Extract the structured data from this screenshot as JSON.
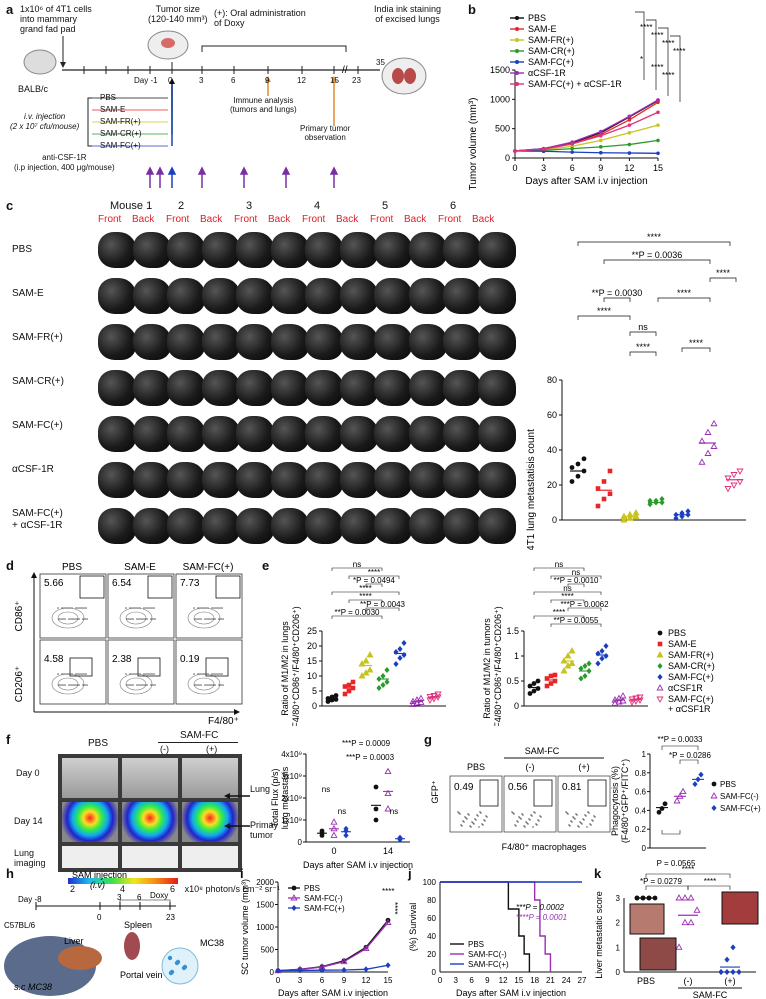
{
  "panels": {
    "a": {
      "letter": "a",
      "cells_note": "1x10⁶ of 4T1 cells\ninto mammary\ngrand fad pad",
      "tumor_size": "Tumor size\n(120-140 mm³)",
      "doxy_note": "(+): Oral administration\nof Doxy",
      "ink_note": "India ink staining\nof excised lungs",
      "mouse_strain": "BALB/c",
      "injection_label": "i.v. injection\n(2 x 10⁷ cfu/mouse)",
      "groups": [
        "PBS",
        "SAM-E",
        "SAM-FR(+)",
        "SAM-CR(+)",
        "SAM-FC(+)"
      ],
      "anti_label": "anti-CSF-1R\n(i.p injection, 400 μg/mouse)",
      "timeline_days": [
        "Day -1",
        "0",
        "3",
        "6",
        "9",
        "12",
        "15",
        "23",
        "35"
      ],
      "immune": "Immune analysis\n(tumors and lungs)",
      "primary": "Primary tumor\nobservation"
    },
    "b": {
      "letter": "b",
      "ylabel": "Tumor volume (mm³)",
      "xlabel": "Days after SAM i.v injection",
      "legend": [
        "PBS",
        "SAM-E",
        "SAM-FR(+)",
        "SAM-CR(+)",
        "SAM-FC(+)",
        "αCSF-1R",
        "SAM-FC(+) + αCSF-1R"
      ],
      "sig": [
        "****",
        "****",
        "****",
        "****",
        "*",
        "****",
        "****"
      ]
    },
    "c": {
      "letter": "c",
      "mouse_headers": [
        "Mouse 1",
        "2",
        "3",
        "4",
        "5",
        "6"
      ],
      "front": "Front",
      "back": "Back",
      "row_labels": [
        "PBS",
        "SAM-E",
        "SAM-FR(+)",
        "SAM-CR(+)",
        "SAM-FC(+)",
        "αCSF-1R",
        "SAM-FC(+)\n+ αCSF-1R"
      ],
      "ylabel": "4T1 lung metastatisis count",
      "stats": [
        "****",
        "**P = 0.0036",
        "****",
        "****",
        "**P = 0.0030",
        "****",
        "ns",
        "****",
        "****"
      ]
    },
    "d": {
      "letter": "d",
      "cols": [
        "PBS",
        "SAM-E",
        "SAM-FC(+)"
      ],
      "top_values": [
        "5.66",
        "6.54",
        "7.73"
      ],
      "bottom_values": [
        "4.58",
        "2.38",
        "0.19"
      ],
      "ylabel_top": "CD86⁺",
      "ylabel_bottom": "CD206⁺",
      "xlabel": "F4/80⁺"
    },
    "e": {
      "letter": "e",
      "ylabel_left": "Ratio of M1/M2  in lungs\n(F4/80⁺CD86⁺/F4/80⁺CD206⁺)",
      "ylabel_right": "Ratio of M1/M2  in tumors\n(F4/80⁺CD86⁺/F4/80⁺CD206⁺)",
      "left_stats": [
        "ns",
        "****",
        "*P = 0.0494",
        "****",
        "****",
        "**P = 0.0043",
        "**P = 0.0030"
      ],
      "right_stats": [
        "ns",
        "ns",
        "**P = 0.0010",
        "ns",
        "****",
        "***P = 0.0062",
        "****",
        "**P = 0.0055"
      ],
      "legend": [
        "PBS",
        "SAM-E",
        "SAM-FR(+)",
        "SAM-CR(+)",
        "SAM-FC(+)",
        "αCSF1R",
        "SAM-FC(+)\n+ αCSF1R"
      ]
    },
    "f": {
      "letter": "f",
      "col_pbs": "PBS",
      "col_samfc": "SAM-FC",
      "minus": "(-)",
      "plus": "(+)",
      "rows": [
        "Day 0",
        "Day 14",
        "Lung\nimaging"
      ],
      "arrow_lung": "Lung",
      "arrow_tumor": "Primay\ntumor",
      "scale_ticks": [
        "2",
        "4",
        "6"
      ],
      "scale_unit": "x10⁸ photon/s cm⁻² sr⁻¹",
      "ylabel": "Total Flux (p/s)\nlung metastasis",
      "xlabel": "Days after SAM i.v injection",
      "stats": [
        "***P = 0.0009",
        "***P = 0.0003",
        "ns",
        "ns",
        "ns"
      ]
    },
    "g": {
      "letter": "g",
      "cols": [
        "PBS",
        "(-)",
        "(+)"
      ],
      "samfc": "SAM-FC",
      "values": [
        "0.49",
        "0.56",
        "0.81"
      ],
      "ylabel": "GFP⁺",
      "xlabel": "F4/80⁺ macrophages",
      "bar_ylabel": "Phagocytosis (%)\n(F4/80⁺GFP⁺/FITC⁺)",
      "stats": [
        "**P = 0.0033",
        "*P = 0.0286",
        "P = 0.0565"
      ],
      "legend": [
        "PBS",
        "SAM-FC(-)",
        "SAM-FC(+)"
      ]
    },
    "h": {
      "letter": "h",
      "sam_inj": "SAM injection\n(i.v)",
      "doxy": "Doxy",
      "days": [
        "Day -8",
        "0",
        "3",
        "6",
        "23"
      ],
      "strain": "C57BL/6",
      "labels": [
        "Liver",
        "Spleen",
        "MC38",
        "Portal vein",
        "s.c MC38"
      ]
    },
    "i": {
      "letter": "i",
      "ylabel": "SC tumor volume (mm³)",
      "xlabel": "Days after SAM i.v  injection",
      "legend": [
        "PBS",
        "SAM-FC(-)",
        "SAM-FC(+)"
      ],
      "sig": [
        "****",
        "****"
      ]
    },
    "j": {
      "letter": "j",
      "ylabel": "(%) Survival",
      "xlabel": "Days after SAM i.v injection",
      "legend": [
        "PBS",
        "SAM-FC(-)",
        "SAM-FC(+)"
      ],
      "stats": [
        "***P = 0.0002",
        "****P = 0.0001"
      ]
    },
    "k": {
      "letter": "k",
      "ylabel": "Liver metastatic score",
      "stats": [
        "****",
        "*P = 0.0279",
        "****"
      ],
      "xlabels": [
        "PBS",
        "(-)",
        "(+)"
      ],
      "samfc": "SAM-FC"
    }
  },
  "chart_data": [
    {
      "id": "b",
      "type": "line",
      "title": "",
      "xlabel": "Days after SAM i.v injection",
      "ylabel": "Tumor volume (mm³)",
      "x": [
        0,
        3,
        6,
        9,
        12,
        15
      ],
      "xlim": [
        0,
        15
      ],
      "ylim": [
        0,
        1500
      ],
      "yticks": [
        0,
        500,
        1000,
        1500
      ],
      "series": [
        {
          "name": "PBS",
          "color": "#111111",
          "values": [
            120,
            160,
            260,
            430,
            700,
            980
          ]
        },
        {
          "name": "SAM-E",
          "color": "#e8262a",
          "values": [
            120,
            150,
            240,
            400,
            650,
            950
          ]
        },
        {
          "name": "SAM-FR(+)",
          "color": "#c7c41f",
          "values": [
            120,
            140,
            200,
            300,
            430,
            560
          ]
        },
        {
          "name": "SAM-CR(+)",
          "color": "#2a9a2a",
          "values": [
            120,
            130,
            160,
            190,
            230,
            300
          ]
        },
        {
          "name": "SAM-FC(+)",
          "color": "#1c3fbf",
          "values": [
            120,
            115,
            100,
            90,
            85,
            80
          ]
        },
        {
          "name": "αCSF-1R",
          "color": "#9b2fb3",
          "values": [
            120,
            160,
            270,
            450,
            710,
            990
          ]
        },
        {
          "name": "SAM-FC(+) + αCSF-1R",
          "color": "#e0307a",
          "values": [
            120,
            150,
            240,
            380,
            560,
            780
          ]
        }
      ]
    },
    {
      "id": "c-scatter",
      "type": "scatter",
      "ylabel": "4T1 lung metastatisis count",
      "ylim": [
        0,
        80
      ],
      "yticks": [
        0,
        20,
        40,
        60,
        80
      ],
      "groups": [
        {
          "name": "PBS",
          "color": "#111111",
          "values": [
            22,
            25,
            28,
            30,
            32,
            35
          ],
          "mean": 28
        },
        {
          "name": "SAM-E",
          "color": "#e8262a",
          "values": [
            8,
            12,
            15,
            18,
            22,
            28
          ],
          "mean": 17
        },
        {
          "name": "SAM-FR(+)",
          "color": "#c7c41f",
          "values": [
            0,
            1,
            2,
            2,
            3,
            4
          ],
          "mean": 2
        },
        {
          "name": "SAM-CR(+)",
          "color": "#2a9a2a",
          "values": [
            9,
            10,
            10,
            11,
            11,
            12
          ],
          "mean": 10
        },
        {
          "name": "SAM-FC(+)",
          "color": "#1c3fbf",
          "values": [
            1,
            2,
            3,
            3,
            4,
            5
          ],
          "mean": 3
        },
        {
          "name": "αCSF-1R",
          "color": "#9b2fb3",
          "values": [
            33,
            38,
            42,
            45,
            50,
            55
          ],
          "mean": 44
        },
        {
          "name": "SAM-FC(+) + αCSF-1R",
          "color": "#e0307a",
          "values": [
            18,
            20,
            22,
            24,
            26,
            28
          ],
          "mean": 23
        }
      ]
    },
    {
      "id": "e-lungs",
      "type": "scatter",
      "ylabel": "Ratio of M1/M2 in lungs",
      "ylim": [
        0,
        25
      ],
      "yticks": [
        0,
        5,
        10,
        15,
        20,
        25
      ],
      "groups": [
        {
          "name": "PBS",
          "values": [
            1.5,
            2,
            2.2,
            2.5,
            3,
            3.5
          ],
          "mean": 2.5
        },
        {
          "name": "SAM-E",
          "values": [
            4,
            5,
            6,
            6.5,
            7,
            8
          ],
          "mean": 6
        },
        {
          "name": "SAM-FR(+)",
          "values": [
            10,
            11,
            12,
            14,
            15,
            17
          ],
          "mean": 13.5
        },
        {
          "name": "SAM-CR(+)",
          "values": [
            6,
            7,
            8,
            9,
            10,
            12
          ],
          "mean": 9
        },
        {
          "name": "SAM-FC(+)",
          "values": [
            14,
            16,
            17,
            18,
            19,
            21
          ],
          "mean": 17.5
        },
        {
          "name": "αCSF1R",
          "values": [
            0.5,
            1,
            1.2,
            1.5,
            2,
            2.5
          ],
          "mean": 1.5
        },
        {
          "name": "SAM-FC(+) + αCSF1R",
          "values": [
            2,
            2.5,
            3,
            3.2,
            3.5,
            4
          ],
          "mean": 3
        }
      ]
    },
    {
      "id": "e-tumors",
      "type": "scatter",
      "ylabel": "Ratio of M1/M2 in tumors",
      "ylim": [
        0,
        1.5
      ],
      "yticks": [
        0,
        0.5,
        1.0,
        1.5
      ],
      "groups": [
        {
          "name": "PBS",
          "values": [
            0.25,
            0.3,
            0.35,
            0.4,
            0.45,
            0.5
          ],
          "mean": 0.37
        },
        {
          "name": "SAM-E",
          "values": [
            0.4,
            0.45,
            0.5,
            0.55,
            0.6,
            0.62
          ],
          "mean": 0.52
        },
        {
          "name": "SAM-FR(+)",
          "values": [
            0.7,
            0.8,
            0.85,
            0.9,
            1.0,
            1.1
          ],
          "mean": 0.9
        },
        {
          "name": "SAM-CR(+)",
          "values": [
            0.55,
            0.6,
            0.7,
            0.75,
            0.8,
            0.85
          ],
          "mean": 0.7
        },
        {
          "name": "SAM-FC(+)",
          "values": [
            0.85,
            0.95,
            1.0,
            1.05,
            1.1,
            1.2
          ],
          "mean": 1.02
        },
        {
          "name": "αCSF1R",
          "values": [
            0.05,
            0.08,
            0.1,
            0.12,
            0.15,
            0.2
          ],
          "mean": 0.12
        },
        {
          "name": "SAM-FC(+) + αCSF1R",
          "values": [
            0.08,
            0.1,
            0.12,
            0.14,
            0.16,
            0.18
          ],
          "mean": 0.13
        }
      ]
    },
    {
      "id": "f-flux",
      "type": "scatter",
      "xlabel": "Days after SAM i.v injection",
      "ylabel": "Total Flux (p/s) lung metastasis",
      "categories": [
        "0",
        "14"
      ],
      "ylim": [
        0,
        4000000000.0
      ],
      "yticks": [
        "0",
        "1x10⁹",
        "2x10⁹",
        "3x10⁹",
        "4x10⁹"
      ],
      "series": [
        {
          "name": "PBS",
          "values": [
            [
              300000000.0,
              400000000.0,
              500000000.0
            ],
            [
              1000000000.0,
              1500000000.0,
              2500000000.0
            ]
          ]
        },
        {
          "name": "SAM-FC(-)",
          "values": [
            [
              300000000.0,
              600000000.0,
              900000000.0
            ],
            [
              1500000000.0,
              2200000000.0,
              3200000000.0
            ]
          ]
        },
        {
          "name": "SAM-FC(+)",
          "values": [
            [
              300000000.0,
              500000000.0,
              600000000.0
            ],
            [
              100000000.0,
              150000000.0,
              200000000.0
            ]
          ]
        }
      ]
    },
    {
      "id": "g-phago",
      "type": "scatter",
      "ylabel": "Phagocytosis (%)",
      "ylim": [
        0,
        1.0
      ],
      "yticks": [
        0,
        0.2,
        0.4,
        0.6,
        0.8,
        1.0
      ],
      "groups": [
        {
          "name": "PBS",
          "values": [
            0.38,
            0.42,
            0.47
          ],
          "mean": 0.43
        },
        {
          "name": "SAM-FC(-)",
          "values": [
            0.5,
            0.55,
            0.6
          ],
          "mean": 0.55
        },
        {
          "name": "SAM-FC(+)",
          "values": [
            0.68,
            0.73,
            0.78
          ],
          "mean": 0.73
        }
      ]
    },
    {
      "id": "i",
      "type": "line",
      "xlabel": "Days after SAM i.v  injection",
      "ylabel": "SC tumor volume (mm³)",
      "x": [
        0,
        3,
        6,
        9,
        12,
        15
      ],
      "ylim": [
        0,
        2000
      ],
      "yticks": [
        0,
        500,
        1000,
        1500,
        2000
      ],
      "series": [
        {
          "name": "PBS",
          "color": "#111111",
          "values": [
            30,
            60,
            120,
            250,
            550,
            1150
          ]
        },
        {
          "name": "SAM-FC(-)",
          "color": "#9b2fb3",
          "values": [
            30,
            55,
            110,
            230,
            520,
            1100
          ]
        },
        {
          "name": "SAM-FC(+)",
          "color": "#1c3fbf",
          "values": [
            30,
            35,
            40,
            45,
            60,
            150
          ]
        }
      ]
    },
    {
      "id": "j",
      "type": "line",
      "xlabel": "Days after SAM i.v injection",
      "ylabel": "(%) Survival",
      "xticks": [
        0,
        3,
        6,
        9,
        12,
        15,
        18,
        21,
        24,
        27
      ],
      "ylim": [
        0,
        100
      ],
      "yticks": [
        0,
        20,
        40,
        60,
        80,
        100
      ],
      "series": [
        {
          "name": "PBS",
          "color": "#111111",
          "steps": [
            [
              0,
              100
            ],
            [
              13,
              100
            ],
            [
              13,
              70
            ],
            [
              15,
              70
            ],
            [
              15,
              40
            ],
            [
              16,
              40
            ],
            [
              16,
              20
            ],
            [
              17,
              20
            ],
            [
              17,
              0
            ]
          ]
        },
        {
          "name": "SAM-FC(-)",
          "color": "#9b2fb3",
          "steps": [
            [
              0,
              100
            ],
            [
              18,
              100
            ],
            [
              18,
              80
            ],
            [
              19,
              80
            ],
            [
              19,
              40
            ],
            [
              20,
              40
            ],
            [
              20,
              20
            ],
            [
              21,
              20
            ],
            [
              21,
              0
            ]
          ]
        },
        {
          "name": "SAM-FC(+)",
          "color": "#1c3fbf",
          "steps": [
            [
              0,
              100
            ],
            [
              27,
              100
            ]
          ]
        }
      ]
    },
    {
      "id": "k",
      "type": "scatter",
      "ylabel": "Liver metastatic score",
      "ylim": [
        0,
        3
      ],
      "yticks": [
        0,
        1,
        2,
        3
      ],
      "groups": [
        {
          "name": "PBS",
          "values": [
            3,
            3,
            3,
            3,
            3,
            3,
            3
          ],
          "mean": 3
        },
        {
          "name": "SAM-FC(-)",
          "values": [
            1,
            2,
            2,
            2.5,
            3,
            3,
            3
          ],
          "mean": 2.3
        },
        {
          "name": "SAM-FC(+)",
          "values": [
            0,
            0,
            0,
            0,
            0,
            0.5,
            1
          ],
          "mean": 0.2
        }
      ]
    }
  ]
}
